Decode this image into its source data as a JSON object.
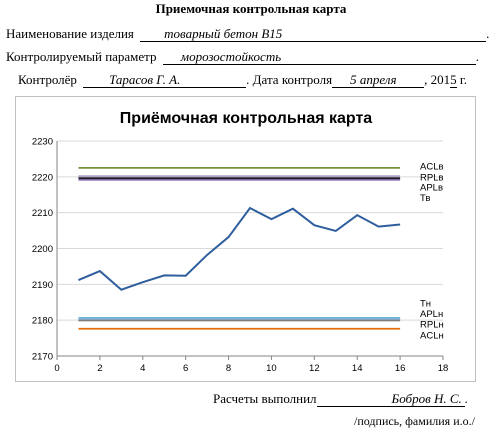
{
  "header": {
    "title": "Приемочная контрольная карта",
    "product_label": "Наименование изделия",
    "product_value": "товарный бетон В15",
    "param_label": "Контролируемый параметр",
    "param_value": "морозостойкость",
    "controller_label": "Контролёр",
    "controller_value": "Тарасов Г. А.",
    "date_label": "Дата контроля",
    "date_value": "5 апреля",
    "year_prefix": "201",
    "year_digit": "5",
    "year_suffix": " г."
  },
  "footer": {
    "calc_label": "Расчеты выполнил",
    "calc_value": "Бобров Н. С.",
    "caption": "/подпись, фамилия и.о./"
  },
  "chart_data": {
    "type": "line",
    "title": "Приёмочная контрольная карта",
    "xlim": [
      0,
      18
    ],
    "ylim": [
      2170,
      2230
    ],
    "x_ticks": [
      0,
      2,
      4,
      6,
      8,
      10,
      12,
      14,
      16,
      18
    ],
    "y_ticks": [
      2170,
      2180,
      2190,
      2200,
      2210,
      2220,
      2230
    ],
    "grid": "horizontal",
    "legend": "right",
    "series": [
      {
        "name": "",
        "color": "#2e5e9e",
        "x": [
          1,
          2,
          3,
          4,
          5,
          6,
          7,
          8,
          9,
          10,
          11,
          12,
          13,
          14,
          15,
          16
        ],
        "y": [
          2191.2,
          2193.7,
          2188.5,
          2190.6,
          2192.5,
          2192.4,
          2198.2,
          2203.2,
          2211.3,
          2208.2,
          2211.1,
          2206.5,
          2204.9,
          2209.3,
          2206.1,
          2206.7
        ]
      },
      {
        "name": "ACLв",
        "color": "#76923c",
        "x": [
          1,
          16
        ],
        "y": [
          2222.5,
          2222.5
        ]
      },
      {
        "name": "RPLв",
        "color": "#b1a0c7",
        "x": [
          1,
          16
        ],
        "y": [
          2220.2,
          2220.2
        ]
      },
      {
        "name": "APLв",
        "color": "#000000",
        "x": [
          1,
          16
        ],
        "y": [
          2219.6,
          2219.6
        ]
      },
      {
        "name": "Тв",
        "color": "#8064a2",
        "x": [
          1,
          16
        ],
        "y": [
          2219.2,
          2219.2
        ]
      },
      {
        "name": "Тн",
        "color": "#4bacc6",
        "x": [
          1,
          16
        ],
        "y": [
          2180.6,
          2180.6
        ]
      },
      {
        "name": "APLн",
        "color": "#8eb4e3",
        "x": [
          1,
          16
        ],
        "y": [
          2180.3,
          2180.3
        ]
      },
      {
        "name": "RPLн",
        "color": "#7f7f7f",
        "x": [
          1,
          16
        ],
        "y": [
          2179.9,
          2179.9
        ]
      },
      {
        "name": "ACLн",
        "color": "#e46c0a",
        "x": [
          1,
          16
        ],
        "y": [
          2177.6,
          2177.6
        ]
      }
    ],
    "legend_labels": [
      {
        "text": "ACLв",
        "y": 2223.0
      },
      {
        "text": "RPLв",
        "y": 2220.0
      },
      {
        "text": "APLв",
        "y": 2217.1
      },
      {
        "text": "Тв",
        "y": 2214.2
      },
      {
        "text": "Тн",
        "y": 2184.8
      },
      {
        "text": "APLн",
        "y": 2181.8
      },
      {
        "text": "RPLн",
        "y": 2178.9
      },
      {
        "text": "ACLн",
        "y": 2175.9
      }
    ]
  }
}
